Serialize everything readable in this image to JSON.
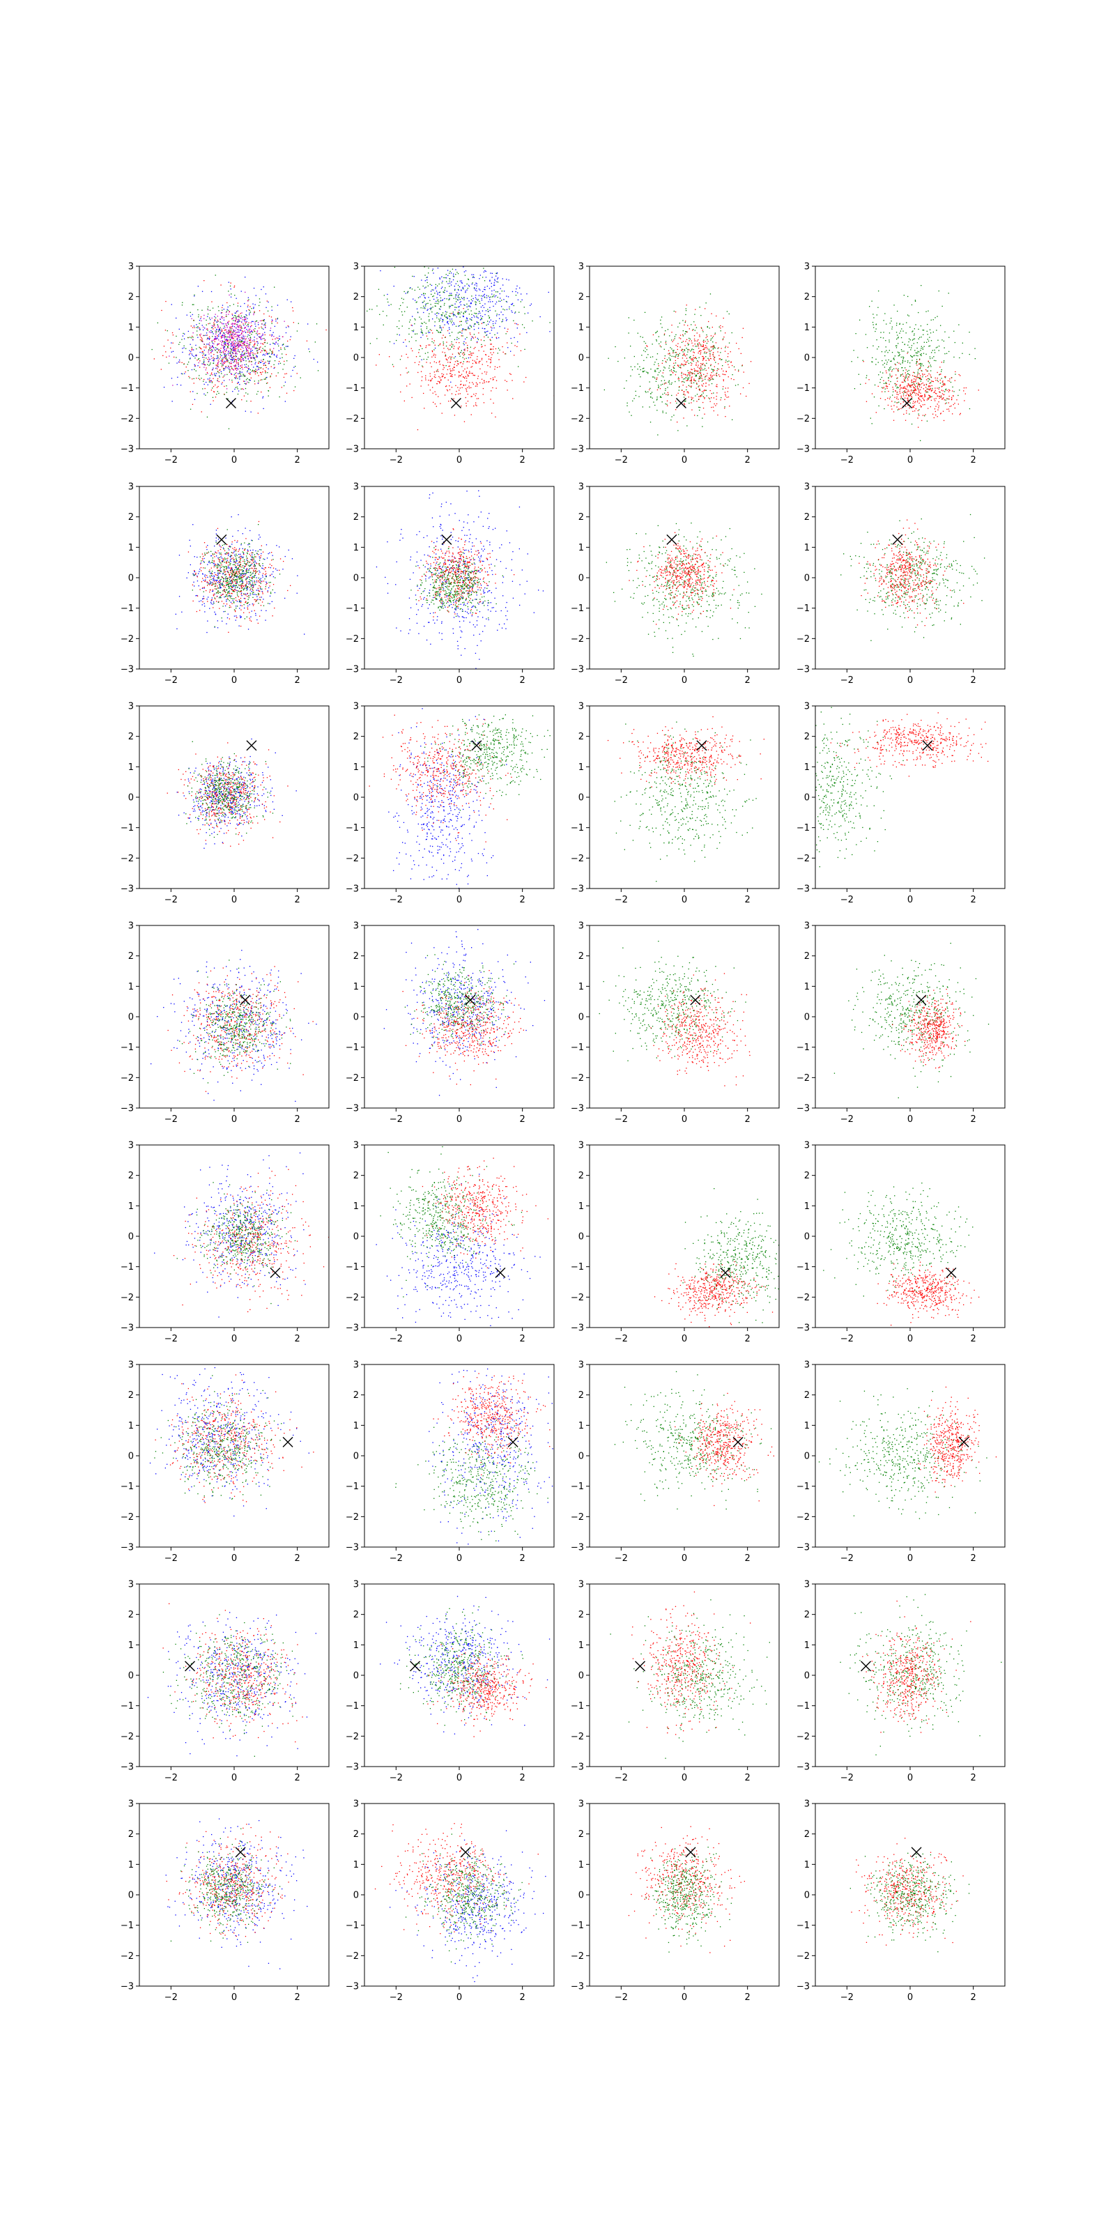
{
  "figure": {
    "layout": "grid 8 rows x 4 columns of scatter subplots",
    "colors": {
      "red": "#ff0000",
      "green": "#008000",
      "blue": "#0000ff",
      "magenta": "#c000c0",
      "marker": "#000000"
    }
  },
  "chart_data": {
    "type": "scatter",
    "grid": {
      "rows": 8,
      "cols": 4
    },
    "xlim": [
      -3,
      3
    ],
    "ylim": [
      -3,
      3
    ],
    "x_ticks": [
      -2,
      0,
      2
    ],
    "y_ticks": [
      -3,
      -2,
      -1,
      0,
      1,
      2,
      3
    ],
    "x_tick_labels": [
      "−2",
      "0",
      "2"
    ],
    "y_tick_labels": [
      "−3",
      "−2",
      "−1",
      "0",
      "1",
      "2",
      "3"
    ],
    "grid_lines": false,
    "legend": "none",
    "marker_symbol": "x",
    "rows": [
      {
        "marker": [
          -0.1,
          -1.5
        ],
        "panels": [
          {
            "clusters": [
              {
                "color": "red",
                "cx": 0.0,
                "cy": 0.3,
                "sx": 0.9,
                "sy": 0.8
              },
              {
                "color": "green",
                "cx": 0.0,
                "cy": 0.3,
                "sx": 0.9,
                "sy": 0.8
              },
              {
                "color": "blue",
                "cx": 0.0,
                "cy": 0.4,
                "sx": 0.9,
                "sy": 0.8
              },
              {
                "color": "magenta",
                "cx": 0.0,
                "cy": 0.5,
                "sx": 0.5,
                "sy": 0.5
              }
            ]
          },
          {
            "clusters": [
              {
                "color": "blue",
                "cx": 0.2,
                "cy": 1.8,
                "sx": 1.0,
                "sy": 0.8
              },
              {
                "color": "green",
                "cx": -0.3,
                "cy": 1.5,
                "sx": 1.0,
                "sy": 0.8
              },
              {
                "color": "red",
                "cx": 0.0,
                "cy": -0.3,
                "sx": 0.8,
                "sy": 0.7
              }
            ]
          },
          {
            "clusters": [
              {
                "color": "green",
                "cx": -0.2,
                "cy": -0.3,
                "sx": 0.8,
                "sy": 0.8
              },
              {
                "color": "red",
                "cx": 0.5,
                "cy": -0.2,
                "sx": 0.6,
                "sy": 0.7
              }
            ]
          },
          {
            "clusters": [
              {
                "color": "green",
                "cx": 0.0,
                "cy": 0.0,
                "sx": 0.8,
                "sy": 0.8
              },
              {
                "color": "red",
                "cx": 0.3,
                "cy": -1.1,
                "sx": 0.6,
                "sy": 0.4
              }
            ]
          }
        ]
      },
      {
        "marker": [
          -0.4,
          1.25
        ],
        "panels": [
          {
            "clusters": [
              {
                "color": "blue",
                "cx": 0.0,
                "cy": 0.0,
                "sx": 0.7,
                "sy": 0.7
              },
              {
                "color": "red",
                "cx": 0.0,
                "cy": 0.0,
                "sx": 0.6,
                "sy": 0.6
              },
              {
                "color": "green",
                "cx": 0.0,
                "cy": 0.0,
                "sx": 0.5,
                "sy": 0.5
              }
            ]
          },
          {
            "clusters": [
              {
                "color": "blue",
                "cx": 0.0,
                "cy": 0.0,
                "sx": 0.9,
                "sy": 1.2
              },
              {
                "color": "red",
                "cx": -0.1,
                "cy": 0.1,
                "sx": 0.5,
                "sy": 0.5
              },
              {
                "color": "green",
                "cx": -0.2,
                "cy": -0.2,
                "sx": 0.5,
                "sy": 0.4
              }
            ]
          },
          {
            "clusters": [
              {
                "color": "green",
                "cx": 0.0,
                "cy": -0.2,
                "sx": 0.9,
                "sy": 0.8
              },
              {
                "color": "red",
                "cx": 0.0,
                "cy": 0.1,
                "sx": 0.5,
                "sy": 0.5
              }
            ]
          },
          {
            "clusters": [
              {
                "color": "green",
                "cx": 0.0,
                "cy": 0.0,
                "sx": 0.9,
                "sy": 0.7
              },
              {
                "color": "red",
                "cx": -0.2,
                "cy": 0.1,
                "sx": 0.5,
                "sy": 0.6
              }
            ]
          }
        ]
      },
      {
        "marker": [
          0.55,
          1.7
        ],
        "panels": [
          {
            "clusters": [
              {
                "color": "blue",
                "cx": -0.3,
                "cy": 0.1,
                "sx": 0.6,
                "sy": 0.6
              },
              {
                "color": "red",
                "cx": -0.3,
                "cy": 0.1,
                "sx": 0.6,
                "sy": 0.6
              },
              {
                "color": "green",
                "cx": -0.3,
                "cy": 0.1,
                "sx": 0.5,
                "sy": 0.5
              }
            ]
          },
          {
            "clusters": [
              {
                "color": "blue",
                "cx": -0.5,
                "cy": -0.5,
                "sx": 0.7,
                "sy": 1.3
              },
              {
                "color": "red",
                "cx": -0.6,
                "cy": 0.8,
                "sx": 0.8,
                "sy": 0.7
              },
              {
                "color": "green",
                "cx": 1.0,
                "cy": 1.5,
                "sx": 0.7,
                "sy": 0.6
              }
            ]
          },
          {
            "clusters": [
              {
                "color": "green",
                "cx": 0.0,
                "cy": 0.0,
                "sx": 0.9,
                "sy": 0.9
              },
              {
                "color": "red",
                "cx": 0.0,
                "cy": 1.4,
                "sx": 0.8,
                "sy": 0.4
              }
            ]
          },
          {
            "clusters": [
              {
                "color": "green",
                "cx": -2.5,
                "cy": 0.3,
                "sx": 0.7,
                "sy": 1.0
              },
              {
                "color": "red",
                "cx": 0.2,
                "cy": 1.8,
                "sx": 0.9,
                "sy": 0.35
              }
            ]
          }
        ]
      },
      {
        "marker": [
          0.35,
          0.55
        ],
        "panels": [
          {
            "clusters": [
              {
                "color": "blue",
                "cx": 0.0,
                "cy": -0.2,
                "sx": 0.9,
                "sy": 0.9
              },
              {
                "color": "red",
                "cx": 0.0,
                "cy": -0.2,
                "sx": 0.8,
                "sy": 0.8
              },
              {
                "color": "green",
                "cx": 0.0,
                "cy": -0.3,
                "sx": 0.6,
                "sy": 0.6
              }
            ]
          },
          {
            "clusters": [
              {
                "color": "blue",
                "cx": 0.0,
                "cy": 0.3,
                "sx": 0.8,
                "sy": 0.9
              },
              {
                "color": "green",
                "cx": 0.0,
                "cy": 0.4,
                "sx": 0.6,
                "sy": 0.6
              },
              {
                "color": "red",
                "cx": 0.3,
                "cy": -0.4,
                "sx": 0.7,
                "sy": 0.6
              }
            ]
          },
          {
            "clusters": [
              {
                "color": "green",
                "cx": -0.4,
                "cy": 0.4,
                "sx": 0.8,
                "sy": 0.7
              },
              {
                "color": "red",
                "cx": 0.5,
                "cy": -0.5,
                "sx": 0.6,
                "sy": 0.6
              }
            ]
          },
          {
            "clusters": [
              {
                "color": "green",
                "cx": 0.0,
                "cy": 0.1,
                "sx": 0.8,
                "sy": 0.8
              },
              {
                "color": "red",
                "cx": 0.7,
                "cy": -0.4,
                "sx": 0.4,
                "sy": 0.5
              }
            ]
          }
        ]
      },
      {
        "marker": [
          1.3,
          -1.2
        ],
        "panels": [
          {
            "clusters": [
              {
                "color": "blue",
                "cx": 0.3,
                "cy": 0.2,
                "sx": 0.8,
                "sy": 0.9
              },
              {
                "color": "red",
                "cx": 0.5,
                "cy": -0.2,
                "sx": 0.8,
                "sy": 0.8
              },
              {
                "color": "green",
                "cx": 0.3,
                "cy": 0.0,
                "sx": 0.6,
                "sy": 0.6
              }
            ]
          },
          {
            "clusters": [
              {
                "color": "blue",
                "cx": 0.0,
                "cy": -1.0,
                "sx": 0.9,
                "sy": 0.9
              },
              {
                "color": "green",
                "cx": -0.6,
                "cy": 0.6,
                "sx": 0.7,
                "sy": 0.7
              },
              {
                "color": "red",
                "cx": 0.6,
                "cy": 0.9,
                "sx": 0.6,
                "sy": 0.6
              }
            ]
          },
          {
            "clusters": [
              {
                "color": "green",
                "cx": 1.8,
                "cy": -0.8,
                "sx": 0.7,
                "sy": 0.7
              },
              {
                "color": "red",
                "cx": 0.9,
                "cy": -1.8,
                "sx": 0.6,
                "sy": 0.4
              }
            ]
          },
          {
            "clusters": [
              {
                "color": "green",
                "cx": -0.3,
                "cy": 0.0,
                "sx": 0.8,
                "sy": 0.7
              },
              {
                "color": "red",
                "cx": 0.5,
                "cy": -1.8,
                "sx": 0.6,
                "sy": 0.35
              }
            ]
          }
        ]
      },
      {
        "marker": [
          1.7,
          0.45
        ],
        "panels": [
          {
            "clusters": [
              {
                "color": "blue",
                "cx": -0.5,
                "cy": 0.7,
                "sx": 0.9,
                "sy": 0.9
              },
              {
                "color": "red",
                "cx": -0.3,
                "cy": 0.5,
                "sx": 0.8,
                "sy": 0.8
              },
              {
                "color": "green",
                "cx": -0.4,
                "cy": 0.3,
                "sx": 0.7,
                "sy": 0.7
              }
            ]
          },
          {
            "clusters": [
              {
                "color": "blue",
                "cx": 1.0,
                "cy": 0.4,
                "sx": 0.8,
                "sy": 1.3
              },
              {
                "color": "green",
                "cx": 0.7,
                "cy": -0.8,
                "sx": 0.8,
                "sy": 0.8
              },
              {
                "color": "red",
                "cx": 1.0,
                "cy": 1.3,
                "sx": 0.6,
                "sy": 0.6
              }
            ]
          },
          {
            "clusters": [
              {
                "color": "green",
                "cx": 0.2,
                "cy": 0.4,
                "sx": 0.9,
                "sy": 0.8
              },
              {
                "color": "red",
                "cx": 1.2,
                "cy": 0.4,
                "sx": 0.5,
                "sy": 0.6
              }
            ]
          },
          {
            "clusters": [
              {
                "color": "green",
                "cx": -0.3,
                "cy": 0.0,
                "sx": 0.9,
                "sy": 0.8
              },
              {
                "color": "red",
                "cx": 1.3,
                "cy": 0.4,
                "sx": 0.4,
                "sy": 0.6
              }
            ]
          }
        ]
      },
      {
        "marker": [
          -1.4,
          0.3
        ],
        "panels": [
          {
            "clusters": [
              {
                "color": "blue",
                "cx": 0.0,
                "cy": 0.0,
                "sx": 0.9,
                "sy": 0.9
              },
              {
                "color": "red",
                "cx": 0.3,
                "cy": 0.0,
                "sx": 0.8,
                "sy": 0.8
              },
              {
                "color": "green",
                "cx": 0.0,
                "cy": 0.0,
                "sx": 0.8,
                "sy": 0.8
              }
            ]
          },
          {
            "clusters": [
              {
                "color": "blue",
                "cx": 0.0,
                "cy": 0.5,
                "sx": 0.8,
                "sy": 0.8
              },
              {
                "color": "green",
                "cx": 0.0,
                "cy": 0.2,
                "sx": 0.7,
                "sy": 0.7
              },
              {
                "color": "red",
                "cx": 0.8,
                "cy": -0.4,
                "sx": 0.6,
                "sy": 0.5
              }
            ]
          },
          {
            "clusters": [
              {
                "color": "green",
                "cx": 0.5,
                "cy": -0.1,
                "sx": 0.8,
                "sy": 0.8
              },
              {
                "color": "red",
                "cx": -0.1,
                "cy": 0.3,
                "sx": 0.6,
                "sy": 0.8
              }
            ]
          },
          {
            "clusters": [
              {
                "color": "green",
                "cx": 0.0,
                "cy": 0.1,
                "sx": 0.8,
                "sy": 0.8
              },
              {
                "color": "red",
                "cx": -0.1,
                "cy": 0.0,
                "sx": 0.5,
                "sy": 0.7
              }
            ]
          }
        ]
      },
      {
        "marker": [
          0.2,
          1.4
        ],
        "panels": [
          {
            "clusters": [
              {
                "color": "blue",
                "cx": 0.0,
                "cy": 0.3,
                "sx": 0.8,
                "sy": 0.8
              },
              {
                "color": "red",
                "cx": -0.1,
                "cy": 0.3,
                "sx": 0.7,
                "sy": 0.7
              },
              {
                "color": "green",
                "cx": -0.2,
                "cy": 0.2,
                "sx": 0.6,
                "sy": 0.6
              }
            ]
          },
          {
            "clusters": [
              {
                "color": "blue",
                "cx": 0.6,
                "cy": -0.3,
                "sx": 0.8,
                "sy": 0.8
              },
              {
                "color": "red",
                "cx": -0.3,
                "cy": 0.6,
                "sx": 0.8,
                "sy": 0.7
              },
              {
                "color": "green",
                "cx": 0.3,
                "cy": 0.0,
                "sx": 0.6,
                "sy": 0.6
              }
            ]
          },
          {
            "clusters": [
              {
                "color": "red",
                "cx": 0.0,
                "cy": 0.4,
                "sx": 0.7,
                "sy": 0.7
              },
              {
                "color": "green",
                "cx": 0.0,
                "cy": 0.0,
                "sx": 0.5,
                "sy": 0.6
              }
            ]
          },
          {
            "clusters": [
              {
                "color": "red",
                "cx": -0.1,
                "cy": 0.1,
                "sx": 0.6,
                "sy": 0.6
              },
              {
                "color": "green",
                "cx": 0.0,
                "cy": 0.0,
                "sx": 0.6,
                "sy": 0.6
              }
            ]
          }
        ]
      }
    ]
  }
}
